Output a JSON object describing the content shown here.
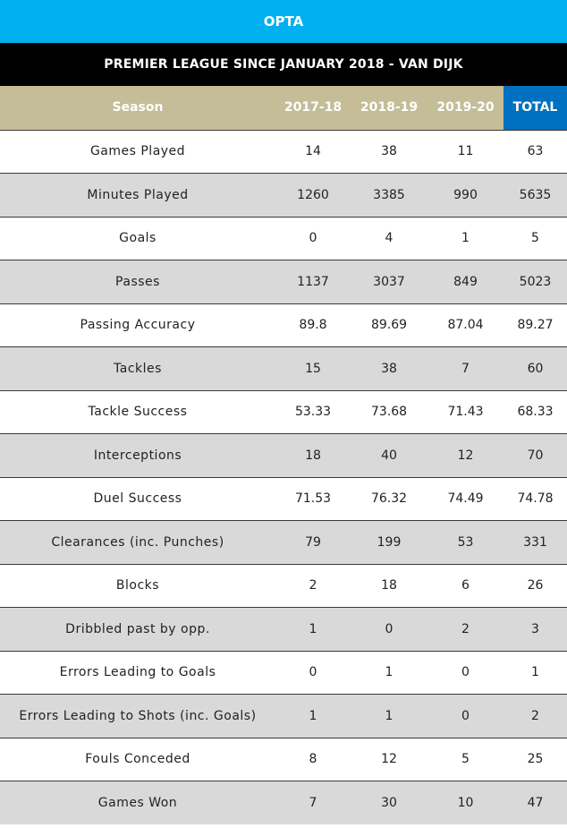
{
  "banner": "OPTA",
  "title": "PREMIER LEAGUE SINCE JANUARY 2018 - VAN DIJK",
  "columns": [
    "Season",
    "2017-18",
    "2018-19",
    "2019-20",
    "TOTAL"
  ],
  "rows": [
    [
      "Games Played",
      "14",
      "38",
      "11",
      "63"
    ],
    [
      "Minutes Played",
      "1260",
      "3385",
      "990",
      "5635"
    ],
    [
      "Goals",
      "0",
      "4",
      "1",
      "5"
    ],
    [
      "Passes",
      "1137",
      "3037",
      "849",
      "5023"
    ],
    [
      "Passing Accuracy",
      "89.8",
      "89.69",
      "87.04",
      "89.27"
    ],
    [
      "Tackles",
      "15",
      "38",
      "7",
      "60"
    ],
    [
      "Tackle Success",
      "53.33",
      "73.68",
      "71.43",
      "68.33"
    ],
    [
      "Interceptions",
      "18",
      "40",
      "12",
      "70"
    ],
    [
      "Duel Success",
      "71.53",
      "76.32",
      "74.49",
      "74.78"
    ],
    [
      "Clearances (inc. Punches)",
      "79",
      "199",
      "53",
      "331"
    ],
    [
      "Blocks",
      "2",
      "18",
      "6",
      "26"
    ],
    [
      "Dribbled past by opp.",
      "1",
      "0",
      "2",
      "3"
    ],
    [
      "Errors Leading to Goals",
      "0",
      "1",
      "0",
      "1"
    ],
    [
      "Errors Leading to Shots (inc. Goals)",
      "1",
      "1",
      "0",
      "2"
    ],
    [
      "Fouls Conceded",
      "8",
      "12",
      "5",
      "25"
    ],
    [
      "Games Won",
      "7",
      "30",
      "10",
      "47"
    ]
  ],
  "colors": {
    "banner": "#00b0f0",
    "title_bar": "#000000",
    "header": "#c4bd97",
    "total_header": "#0070c0",
    "row_alt": "#d9d9d9"
  }
}
